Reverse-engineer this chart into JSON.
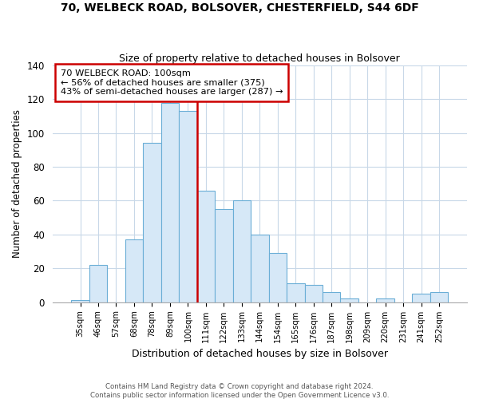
{
  "title1": "70, WELBECK ROAD, BOLSOVER, CHESTERFIELD, S44 6DF",
  "title2": "Size of property relative to detached houses in Bolsover",
  "xlabel": "Distribution of detached houses by size in Bolsover",
  "ylabel": "Number of detached properties",
  "categories": [
    "35sqm",
    "46sqm",
    "57sqm",
    "68sqm",
    "78sqm",
    "89sqm",
    "100sqm",
    "111sqm",
    "122sqm",
    "133sqm",
    "144sqm",
    "154sqm",
    "165sqm",
    "176sqm",
    "187sqm",
    "198sqm",
    "209sqm",
    "220sqm",
    "231sqm",
    "241sqm",
    "252sqm"
  ],
  "values": [
    1,
    22,
    0,
    37,
    94,
    118,
    113,
    66,
    55,
    60,
    40,
    29,
    11,
    10,
    6,
    2,
    0,
    2,
    0,
    5,
    6
  ],
  "highlight_index": 6,
  "bar_color": "#d6e8f7",
  "highlight_outline_color": "#cc0000",
  "bar_edge_color": "#6aaed6",
  "ylim": [
    0,
    140
  ],
  "yticks": [
    0,
    20,
    40,
    60,
    80,
    100,
    120,
    140
  ],
  "annotation_title": "70 WELBECK ROAD: 100sqm",
  "annotation_line1": "← 56% of detached houses are smaller (375)",
  "annotation_line2": "43% of semi-detached houses are larger (287) →",
  "footer1": "Contains HM Land Registry data © Crown copyright and database right 2024.",
  "footer2": "Contains public sector information licensed under the Open Government Licence v3.0."
}
